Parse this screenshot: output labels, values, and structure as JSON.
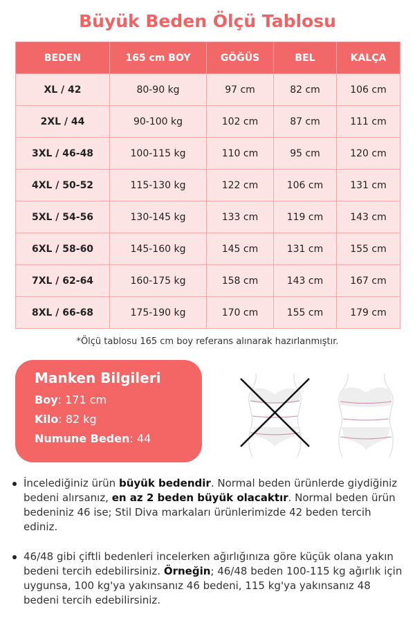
{
  "title": "Büyük Beden Ölçü Tablosu",
  "table": {
    "headers": [
      "BEDEN",
      "165 cm BOY",
      "GÖĞÜS",
      "BEL",
      "KALÇA"
    ],
    "rows": [
      [
        "XL / 42",
        "80-90 kg",
        "97 cm",
        "82 cm",
        "106 cm"
      ],
      [
        "2XL / 44",
        "90-100 kg",
        "102 cm",
        "87 cm",
        "111 cm"
      ],
      [
        "3XL / 46-48",
        "100-115 kg",
        "110 cm",
        "95 cm",
        "120 cm"
      ],
      [
        "4XL / 50-52",
        "115-130 kg",
        "122 cm",
        "106 cm",
        "131 cm"
      ],
      [
        "5XL / 54-56",
        "130-145 kg",
        "133 cm",
        "119 cm",
        "143 cm"
      ],
      [
        "6XL / 58-60",
        "145-160 kg",
        "145 cm",
        "131 cm",
        "155 cm"
      ],
      [
        "7XL / 62-64",
        "160-175 kg",
        "158 cm",
        "143 cm",
        "167 cm"
      ],
      [
        "8XL / 66-68",
        "175-190 kg",
        "170 cm",
        "155 cm",
        "179 cm"
      ]
    ]
  },
  "note": "*Ölçü tablosu 165 cm boy referans alınarak hazırlanmıştır.",
  "model": {
    "heading": "Manken Bilgileri",
    "boy_label": "Boy",
    "boy_value": ": 171 cm",
    "kilo_label": "Kilo",
    "kilo_value": ": 82 kg",
    "size_label": "Numune Beden",
    "size_value": ": 44"
  },
  "colors": {
    "accent": "#f26868",
    "row_bg": "#fde4e4"
  },
  "bullets": [
    {
      "p1": "İncelediğiniz ürün ",
      "b1": "büyük bedendir",
      "p2": ". Normal beden ürünlerde giydiğiniz bedeni alırsanız, ",
      "b2": "en az 2 beden büyük olacaktır",
      "p3": ". Normal beden ürün bedeniniz 46 ise; Stil Diva markaları ürünlerimizde 42 beden tercih ediniz."
    },
    {
      "p1": "46/48 gibi çiftli bedenleri incelerken ağırlığınıza göre küçük olana yakın bedeni tercih edebilirsiniz. ",
      "b1": "Örneğin",
      "p2": "; 46/48 beden 100-115 kg ağırlık için uygunsa, 100 kg'ya yakınsanız 46 bedeni, 115 kg'ya yakınsanız 48 bedeni tercih edebilirsiniz.",
      "b2": "",
      "p3": ""
    }
  ]
}
